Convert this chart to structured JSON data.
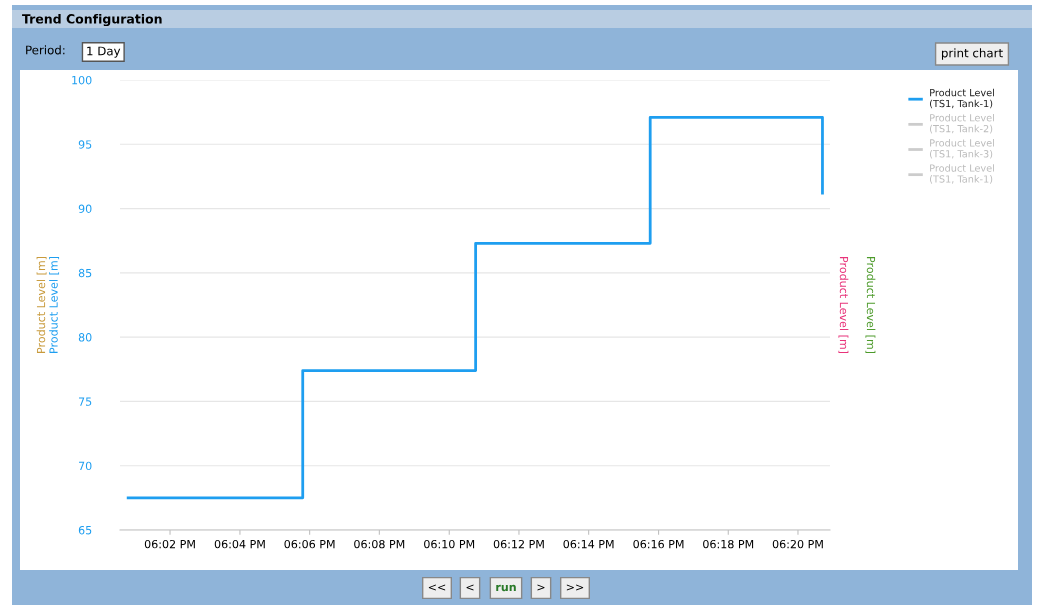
{
  "chart_data": {
    "type": "step",
    "title": "Trend Configuration",
    "x": [
      18.0133,
      18.0967,
      18.1793,
      18.2627,
      18.345,
      18.345
    ],
    "series": [
      {
        "name": "Product Level\n(TS1, Tank-1)",
        "color": "#1e9ef0",
        "values": [
          67.5,
          77.4,
          87.3,
          97.1,
          97.1,
          91.2
        ]
      },
      {
        "name": "Product Level\n(TS1, Tank-2)",
        "color": "#cccccc",
        "values": [
          null,
          null,
          null,
          null,
          null,
          null
        ]
      },
      {
        "name": "Product Level\n(TS1, Tank-3)",
        "color": "#cccccc",
        "values": [
          null,
          null,
          null,
          null,
          null,
          null
        ]
      },
      {
        "name": "Product Level\n(TS1, Tank-1)",
        "color": "#cccccc",
        "values": [
          null,
          null,
          null,
          null,
          null,
          null
        ]
      }
    ],
    "xlim": [
      18.0094,
      18.3486
    ],
    "xticks": [
      {
        "value": 18.0333,
        "label": "06:02 PM"
      },
      {
        "value": 18.0667,
        "label": "06:04 PM"
      },
      {
        "value": 18.1,
        "label": "06:06 PM"
      },
      {
        "value": 18.1333,
        "label": "06:08 PM"
      },
      {
        "value": 18.1667,
        "label": "06:10 PM"
      },
      {
        "value": 18.2,
        "label": "06:12 PM"
      },
      {
        "value": 18.2333,
        "label": "06:14 PM"
      },
      {
        "value": 18.2667,
        "label": "06:16 PM"
      },
      {
        "value": 18.3,
        "label": "06:18 PM"
      },
      {
        "value": 18.3333,
        "label": "06:20 PM"
      }
    ],
    "ylim": [
      65,
      100
    ],
    "yticks": [
      65,
      70,
      75,
      80,
      85,
      90,
      95,
      100
    ],
    "ylabel": "Product Level [m]",
    "y2label": "Product Level [m]",
    "annotations": [
      "Product Level [m]",
      "Product Level [m]",
      "Period:",
      "1 Day",
      "print chart",
      "<<",
      "<",
      "run",
      ">",
      ">>"
    ],
    "grid": "y",
    "legend": "top right",
    "line_style": "solid",
    "marker": "none"
  }
}
